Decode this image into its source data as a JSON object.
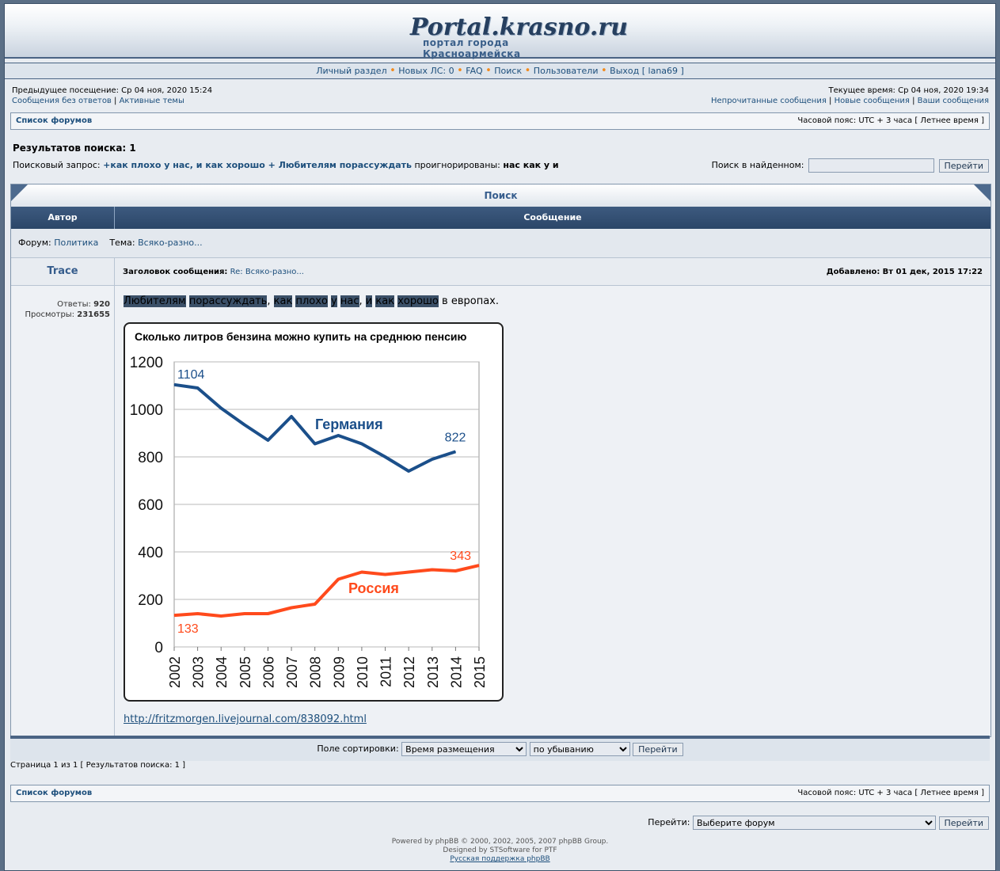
{
  "header": {
    "logo_title": "Portal.krasno.ru",
    "logo_subtitle": "портал города Красноармейска"
  },
  "nav": {
    "personal": "Личный раздел",
    "new_pm": "Новых ЛС: 0",
    "faq": "FAQ",
    "search": "Поиск",
    "users": "Пользователи",
    "logout": "Выход [ lana69 ]"
  },
  "info": {
    "prev_visit": "Предыдущее посещение: Ср 04 ноя, 2020 15:24",
    "no_replies": "Сообщения без ответов",
    "sep": "|",
    "active": "Активные темы",
    "current_time": "Текущее время: Ср 04 ноя, 2020 19:34",
    "unread": "Непрочитанные сообщения",
    "new_msgs": "Новые сообщения",
    "your_msgs": "Ваши сообщения"
  },
  "forum_list": "Список форумов",
  "timezone": "Часовой пояс: UTC + 3 часа [ Летнее время ]",
  "search": {
    "results_count": "Результатов поиска: 1",
    "query_label": "Поисковый запрос:",
    "query": "+как плохо у нас, и как хорошо + Любителям порассуждать",
    "ignored_label": "проигнорированы:",
    "ignored": "нас как у и",
    "search_in_label": "Поиск в найденном:",
    "search_in_value": "",
    "go_label": "Перейти"
  },
  "panel": {
    "title": "Поиск",
    "col_author": "Автор",
    "col_message": "Сообщение",
    "forum_label": "Форум:",
    "forum_name": "Политика",
    "topic_label": "Тема:",
    "topic_name": "Всяко-разно..."
  },
  "post": {
    "author": "Trace",
    "subject_label": "Заголовок сообщения:",
    "subject": "Re: Всяко-разно...",
    "added_label": "Добавлено:",
    "added": "Вт 01 дек, 2015 17:22",
    "replies_label": "Ответы:",
    "replies": "920",
    "views_label": "Просмотры:",
    "views": "231655",
    "text_words": [
      "Любителям",
      "порассуждать",
      "как",
      "плохо",
      "у",
      "нас",
      "и",
      "как",
      "хорошо"
    ],
    "text_tail": "в европах.",
    "link": "http://fritzmorgen.livejournal.com/838092.html"
  },
  "chart_data": {
    "type": "line",
    "title": "Сколько литров бензина можно купить на среднюю пенсию",
    "x": [
      "2002",
      "2003",
      "2004",
      "2005",
      "2006",
      "2007",
      "2008",
      "2009",
      "2010",
      "2011",
      "2012",
      "2013",
      "2014",
      "2015"
    ],
    "ylim": [
      0,
      1200
    ],
    "yticks": [
      "0",
      "200",
      "400",
      "600",
      "800",
      "1000",
      "1200"
    ],
    "grid": true,
    "series": [
      {
        "name": "Германия",
        "color": "#1b4f8a",
        "values": [
          1104,
          1090,
          1005,
          935,
          870,
          970,
          855,
          890,
          855,
          800,
          740,
          790,
          822,
          null
        ],
        "labels": {
          "first": "1104",
          "last": "822"
        }
      },
      {
        "name": "Россия",
        "color": "#ff4a1c",
        "values": [
          133,
          140,
          130,
          140,
          140,
          165,
          180,
          285,
          315,
          305,
          315,
          325,
          320,
          343
        ],
        "labels": {
          "first": "133",
          "last": "343"
        }
      }
    ]
  },
  "sort": {
    "label": "Поле сортировки:",
    "field": "Время размещения",
    "order": "по убыванию",
    "go": "Перейти"
  },
  "pagination": {
    "text": "Страница 1 из 1 [ Результатов поиска: 1 ]"
  },
  "jump": {
    "label": "Перейти:",
    "select": "Выберите форум",
    "go": "Перейти"
  },
  "footer": {
    "powered": "Powered by phpBB © 2000, 2002, 2005, 2007 phpBB Group.",
    "designed": "Designed by STSoftware for PTF",
    "support": "Русская поддержка phpBB"
  }
}
